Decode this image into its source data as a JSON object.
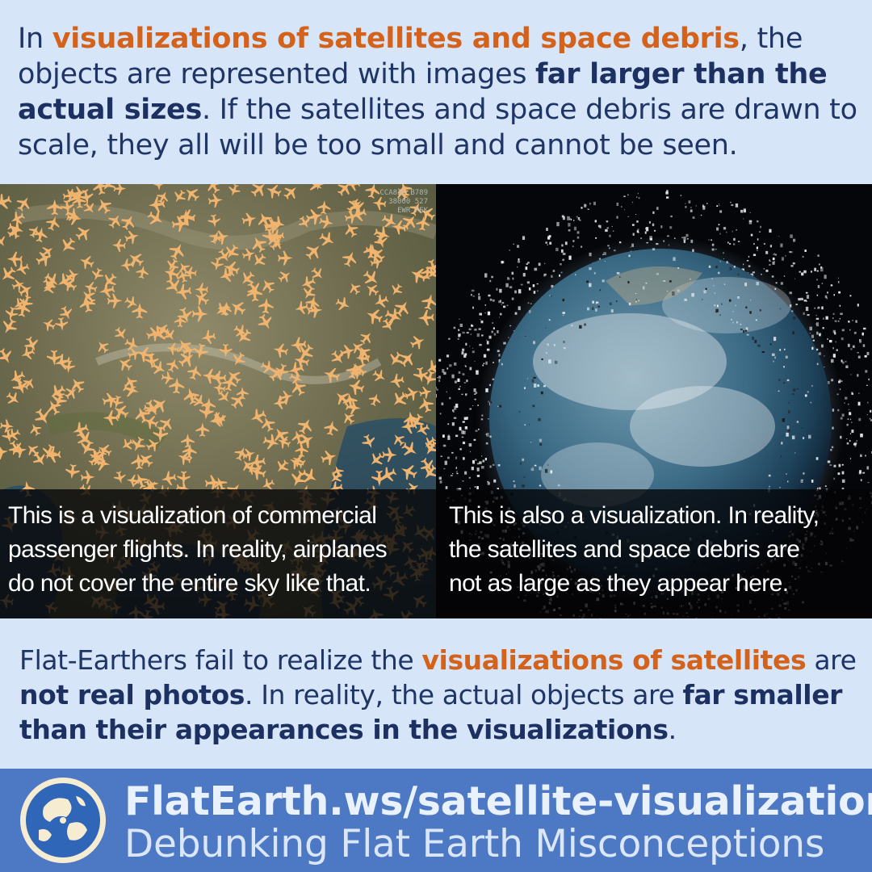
{
  "intro": {
    "t1": "In ",
    "t2": "visualizations of satellites and space debris",
    "t3": ", the objects are represented with images ",
    "t4": "far larger than the actual sizes",
    "t5": ". If the satellites and space debris are drawn to scale, they all will be too small and cannot be seen."
  },
  "left_panel": {
    "tracker": [
      "CCA820 B789",
      "38000 527",
      "EWR PEK"
    ],
    "caption": [
      "This is a visualization of commercial",
      "passenger flights. In reality, airplanes",
      "do not cover the entire sky like that."
    ]
  },
  "right_panel": {
    "caption": [
      "This is also a visualization. In reality,",
      "the satellites and space debris are",
      "not as large as they appear here."
    ]
  },
  "conclusion": {
    "t1": "Flat-Earthers fail to realize the ",
    "t2": "visualizations of satellites",
    "t3": " are ",
    "t4": "not real photos",
    "t5": ". In reality, the actual objects are ",
    "t6": "far smaller than their appearances in the visualizations",
    "t7": "."
  },
  "footer": {
    "url": "FlatEarth.ws/satellite-visualization",
    "tagline": "Debunking Flat Earth Misconceptions"
  },
  "colors": {
    "background": "#d7e5f8",
    "text": "#1f3566",
    "accent": "#d4621b",
    "footer": "#4d78c3"
  },
  "icons": [
    "airplane-icon",
    "globe-logo-icon"
  ]
}
